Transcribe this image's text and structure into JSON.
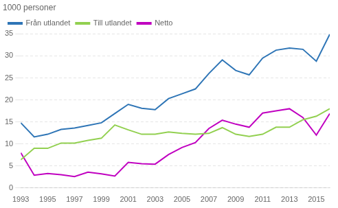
{
  "chart_data": {
    "type": "line",
    "ylabel": "1000 personer",
    "x": [
      1993,
      1994,
      1995,
      1996,
      1997,
      1998,
      1999,
      2000,
      2001,
      2002,
      2003,
      2004,
      2005,
      2006,
      2007,
      2008,
      2009,
      2010,
      2011,
      2012,
      2013,
      2014,
      2015,
      2016
    ],
    "series": [
      {
        "name": "Från utlandet",
        "color": "#2E75B6",
        "values": [
          14.8,
          11.6,
          12.2,
          13.3,
          13.6,
          14.2,
          14.8,
          16.9,
          19.0,
          18.1,
          17.8,
          20.3,
          21.4,
          22.5,
          26.0,
          29.1,
          26.7,
          25.7,
          29.5,
          31.3,
          31.8,
          31.5,
          28.8,
          34.9
        ]
      },
      {
        "name": "Till utlandet",
        "color": "#92D050",
        "values": [
          6.4,
          9.0,
          9.0,
          10.2,
          10.2,
          10.8,
          11.3,
          14.3,
          13.2,
          12.2,
          12.2,
          12.7,
          12.4,
          12.2,
          12.4,
          13.7,
          12.2,
          11.7,
          12.2,
          13.8,
          13.8,
          15.5,
          16.3,
          18.0
        ]
      },
      {
        "name": "Netto",
        "color": "#C000C0",
        "values": [
          8.0,
          2.9,
          3.3,
          3.0,
          2.6,
          3.6,
          3.2,
          2.7,
          5.8,
          5.5,
          5.4,
          7.6,
          9.2,
          10.3,
          13.5,
          15.4,
          14.5,
          13.8,
          17.0,
          17.5,
          18.0,
          16.0,
          12.0,
          16.9
        ]
      }
    ],
    "xlim": [
      1993,
      2016
    ],
    "xticks": [
      1993,
      1995,
      1997,
      1999,
      2001,
      2003,
      2005,
      2007,
      2009,
      2011,
      2013,
      2015
    ],
    "ylim": [
      0,
      35
    ],
    "yticks": [
      0,
      5,
      10,
      15,
      20,
      25,
      30,
      35
    ],
    "grid": "y",
    "legend": "upper left"
  }
}
